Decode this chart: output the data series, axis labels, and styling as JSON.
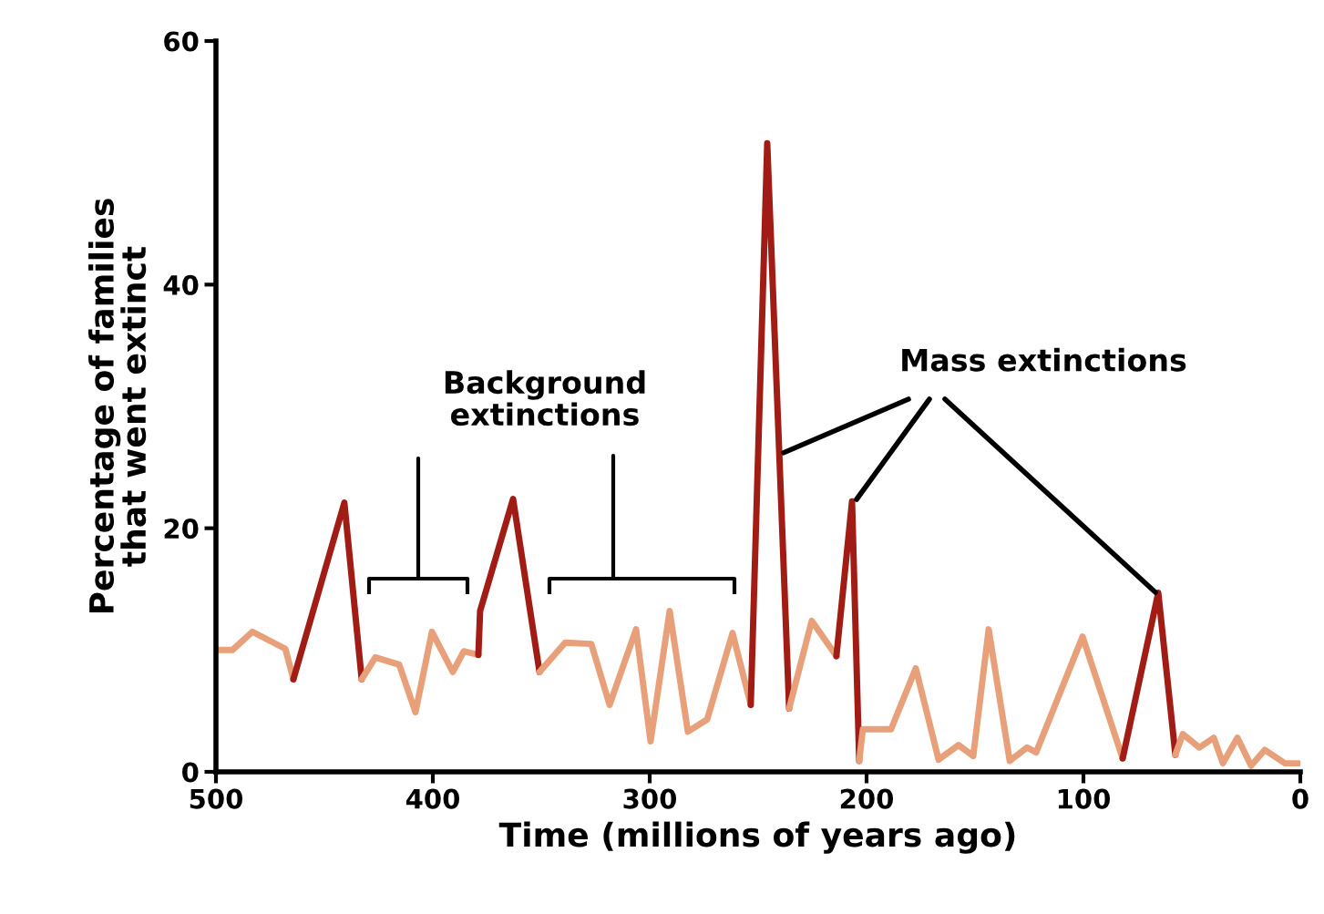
{
  "chart_data": {
    "type": "line",
    "xlabel": "Time (millions of years ago)",
    "ylabel": "Percentage of families\nthat went extinct",
    "xlim": [
      500,
      0
    ],
    "xticks": [
      500,
      400,
      300,
      200,
      100,
      0
    ],
    "ylim": [
      0,
      60
    ],
    "yticks": [
      0,
      20,
      40,
      60
    ],
    "grid": false,
    "marker": "none",
    "line_style": "solid",
    "series": [
      {
        "color": "#e8a07a",
        "x": [
          500,
          492.4,
          483.2,
          468,
          464.3
        ],
        "values": [
          10.0,
          10.0,
          11.5,
          10.1,
          7.6
        ]
      },
      {
        "color": "#a01c14",
        "x": [
          464.3,
          440.8,
          432.8
        ],
        "values": [
          7.6,
          22.1,
          7.6
        ]
      },
      {
        "color": "#e8a07a",
        "x": [
          432.8,
          426.5,
          415.5,
          408,
          400.4,
          390.8,
          385.7,
          379
        ],
        "values": [
          7.6,
          9.4,
          8.8,
          4.9,
          11.5,
          8.2,
          9.9,
          9.6
        ]
      },
      {
        "color": "#a01c14",
        "x": [
          379,
          378.2,
          363,
          350.8
        ],
        "values": [
          9.6,
          13.2,
          22.4,
          8.2
        ]
      },
      {
        "color": "#e8a07a",
        "x": [
          350.8,
          339,
          326.9,
          318.5,
          306.3,
          299.6,
          290.8,
          282.4,
          273.5,
          261.8,
          253.4
        ],
        "values": [
          8.2,
          10.6,
          10.5,
          5.5,
          11.7,
          2.5,
          13.2,
          3.3,
          4.3,
          11.4,
          5.5
        ]
      },
      {
        "color": "#a01c14",
        "x": [
          253.4,
          245.8,
          235.7
        ],
        "values": [
          5.5,
          51.6,
          5.2
        ]
      },
      {
        "color": "#e8a07a",
        "x": [
          235.7,
          225.3,
          213.9
        ],
        "values": [
          5.2,
          12.4,
          9.5
        ]
      },
      {
        "color": "#a01c14",
        "x": [
          213.9,
          206.7,
          203.4
        ],
        "values": [
          9.5,
          22.2,
          0.9
        ]
      },
      {
        "color": "#e8a07a",
        "x": [
          203.4,
          201.7,
          188.7,
          177.3,
          166.8,
          157.6,
          150.8,
          143.7,
          134,
          126,
          121.8,
          100.4,
          81.9
        ],
        "values": [
          0.9,
          3.5,
          3.5,
          8.5,
          1.0,
          2.2,
          1.3,
          11.7,
          0.9,
          2.0,
          1.6,
          11.1,
          1.1
        ]
      },
      {
        "color": "#a01c14",
        "x": [
          81.9,
          65.5,
          57.6
        ],
        "values": [
          1.1,
          14.7,
          1.4
        ]
      },
      {
        "color": "#e8a07a",
        "x": [
          57.6,
          54.2,
          46.6,
          39.9,
          35.7,
          29,
          22.7,
          16.4,
          7.1,
          0.8
        ],
        "values": [
          1.4,
          3.1,
          2.0,
          2.8,
          0.7,
          2.8,
          0.5,
          1.8,
          0.7,
          0.7
        ]
      }
    ],
    "annotations": [
      "Background\nextinctions",
      {
        "text": "Mass extinctions",
        "x": 238.2,
        "y": 26.2
      }
    ]
  }
}
